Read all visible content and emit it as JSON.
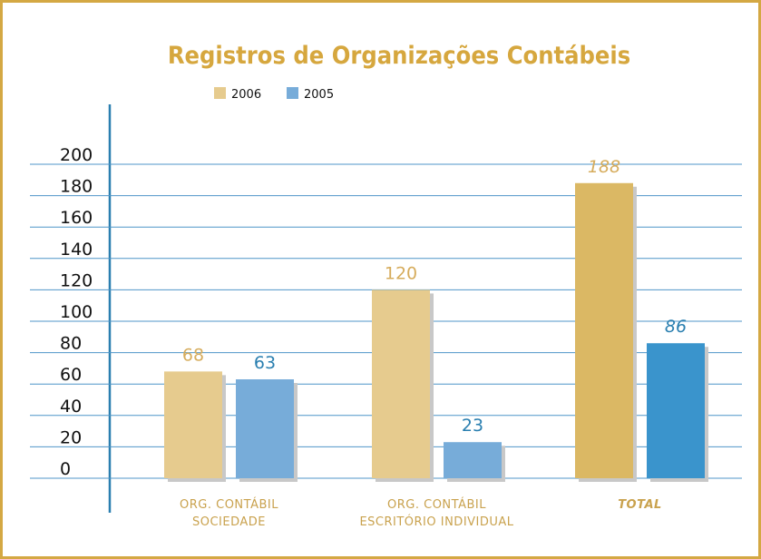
{
  "chart_data": {
    "type": "bar",
    "title": "Registros de Organizações Contábeis",
    "categories": [
      [
        "ORG. CONTÁBIL",
        "SOCIEDADE"
      ],
      [
        "ORG. CONTÁBIL",
        "ESCRITÓRIO INDIVIDUAL"
      ],
      [
        "TOTAL"
      ]
    ],
    "series": [
      {
        "name": "2006",
        "color": "#e6cb8e",
        "colors": [
          "#e6cb8e",
          "#e6cb8e",
          "#dbb864"
        ],
        "label_color": "#d6ac5c",
        "values": [
          68,
          120,
          188
        ]
      },
      {
        "name": "2005",
        "color": "#77acd9",
        "colors": [
          "#77acd9",
          "#77acd9",
          "#3a94cc"
        ],
        "label_color": "#2a7fb0",
        "values": [
          63,
          23,
          86
        ]
      }
    ],
    "ylim": [
      0,
      200
    ],
    "yticks": [
      0,
      20,
      40,
      60,
      80,
      100,
      120,
      140,
      160,
      180,
      200
    ],
    "grid": true
  }
}
